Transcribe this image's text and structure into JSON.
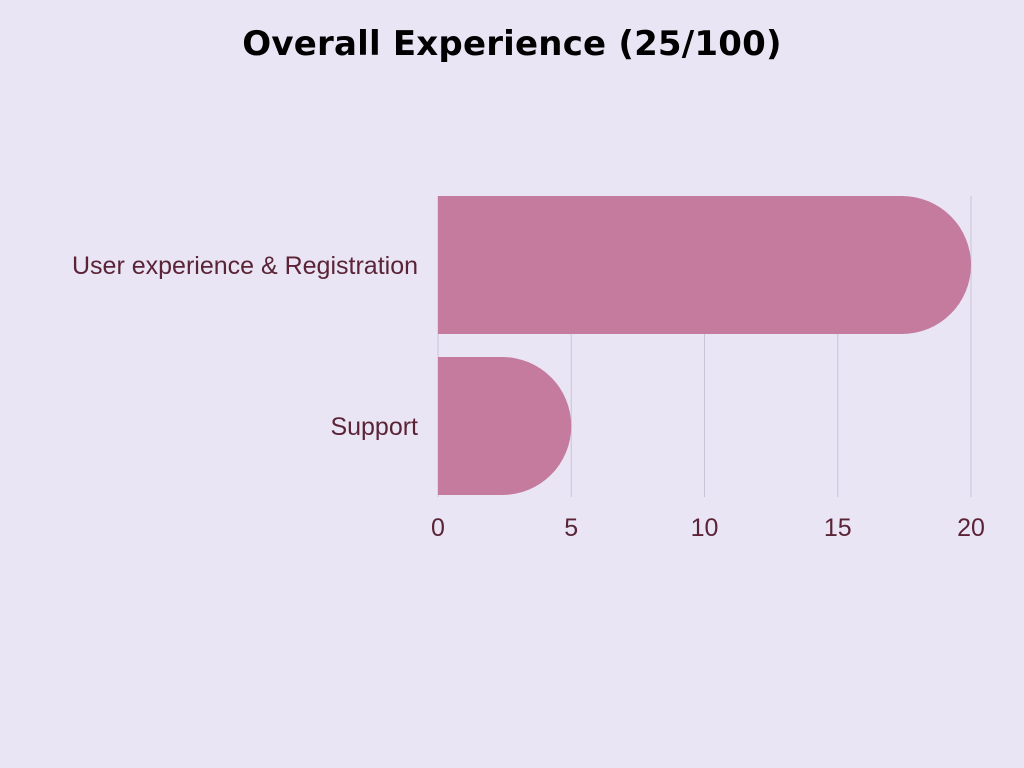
{
  "chart_data": {
    "type": "bar",
    "orientation": "horizontal",
    "title": "Overall Experience (25/100)",
    "categories": [
      "User experience & Registration",
      "Support"
    ],
    "values": [
      20,
      5
    ],
    "xlim": [
      0,
      20
    ],
    "xticks": [
      "0",
      "5",
      "10",
      "15",
      "20"
    ],
    "xlabel": "",
    "ylabel": "",
    "grid": "vertical",
    "legend": "none"
  },
  "colors": {
    "background": "#e9e5f5",
    "bar": "#c47b9e",
    "label_text": "#5a2436",
    "gridline": "#c9c3d6",
    "title": "#000000"
  }
}
